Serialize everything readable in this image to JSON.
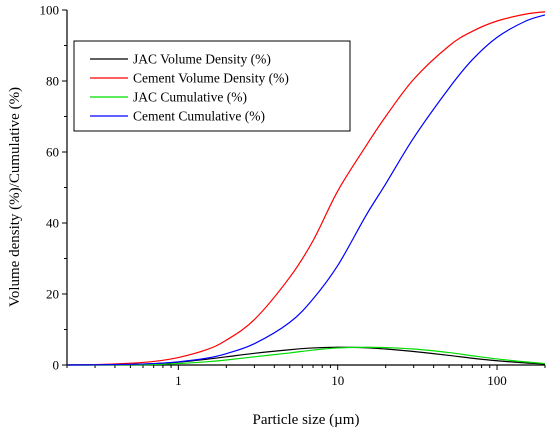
{
  "chart_data": {
    "type": "line",
    "title": "",
    "xlabel": "Particle size (µm)",
    "ylabel": "Volume density (%)/Cumulative (%)",
    "xscale": "log",
    "xlim": [
      0.2,
      200
    ],
    "ylim": [
      0,
      100
    ],
    "x_ticks": [
      1,
      10,
      100
    ],
    "x_tick_labels": [
      "1",
      "10",
      "100"
    ],
    "y_ticks": [
      0,
      20,
      40,
      60,
      80,
      100
    ],
    "y_tick_labels": [
      "0",
      "20",
      "40",
      "60",
      "80",
      "100"
    ],
    "grid": false,
    "legend_position": "top-left",
    "series": [
      {
        "name": "JAC Volume Density (%)",
        "color": "#000000",
        "x": [
          0.2,
          0.3,
          0.5,
          0.7,
          1,
          1.5,
          2,
          3,
          5,
          7,
          10,
          15,
          20,
          30,
          50,
          70,
          100,
          150,
          200
        ],
        "y": [
          0.02,
          0.05,
          0.15,
          0.35,
          0.8,
          1.6,
          2.3,
          3.3,
          4.3,
          4.8,
          5.0,
          4.85,
          4.5,
          3.8,
          2.7,
          1.9,
          1.2,
          0.6,
          0.3
        ]
      },
      {
        "name": "Cement Volume Density (%)",
        "color": "#ff0000",
        "x": [
          0.2,
          0.3,
          0.5,
          0.7,
          1,
          1.5,
          2,
          3,
          5,
          7,
          10,
          15,
          20,
          30,
          50,
          70,
          100,
          150,
          200
        ],
        "y": [
          0.0,
          0.1,
          0.5,
          1.0,
          2.1,
          4.3,
          7.0,
          12.8,
          24.7,
          35.0,
          49.0,
          61.6,
          70.0,
          80.5,
          89.9,
          94.0,
          96.9,
          98.8,
          99.5
        ]
      },
      {
        "name": "JAC Cumulative (%)",
        "color": "#00dd00",
        "x": [
          0.2,
          0.3,
          0.5,
          0.7,
          1,
          1.5,
          2,
          3,
          5,
          7,
          10,
          15,
          20,
          30,
          50,
          70,
          100,
          150,
          200
        ],
        "y": [
          0.0,
          0.0,
          0.05,
          0.15,
          0.4,
          0.9,
          1.4,
          2.3,
          3.4,
          4.2,
          4.8,
          5.0,
          4.9,
          4.5,
          3.5,
          2.6,
          1.7,
          0.9,
          0.4
        ]
      },
      {
        "name": "Cement Cumulative (%)",
        "color": "#0000ff",
        "x": [
          0.2,
          0.3,
          0.5,
          0.7,
          1,
          1.5,
          2,
          3,
          5,
          7,
          10,
          15,
          20,
          30,
          50,
          70,
          100,
          150,
          200
        ],
        "y": [
          0.0,
          0.05,
          0.2,
          0.4,
          0.9,
          1.9,
          3.2,
          6.0,
          12.0,
          18.6,
          28.0,
          42.0,
          51.0,
          64.0,
          78.0,
          86.0,
          92.3,
          96.8,
          98.6
        ]
      }
    ]
  }
}
